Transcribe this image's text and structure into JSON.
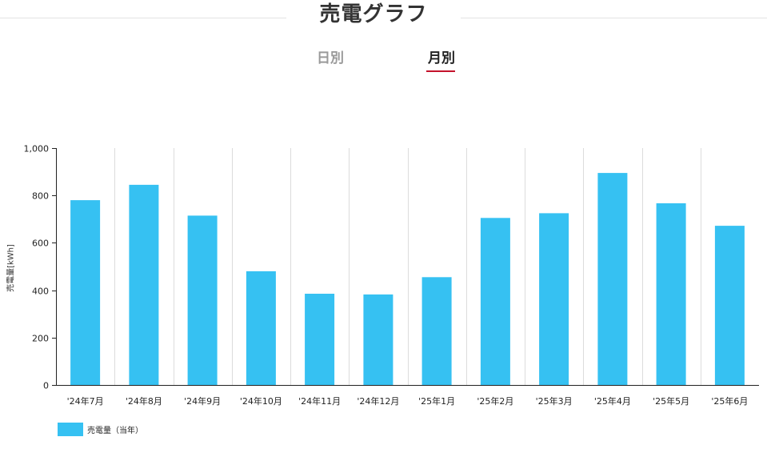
{
  "header": {
    "title": "売電グラフ"
  },
  "tabs": [
    {
      "label": "日別",
      "active": false
    },
    {
      "label": "月別",
      "active": true
    }
  ],
  "colors": {
    "bar": "#36c1f2",
    "accent": "#c4122b",
    "grid": "#dcdcdc",
    "axis": "#222222"
  },
  "legend": [
    {
      "label": "売電量（当年）",
      "color": "#36c1f2"
    }
  ],
  "chart_data": {
    "type": "bar",
    "categories": [
      "'24年7月",
      "'24年8月",
      "'24年9月",
      "'24年10月",
      "'24年11月",
      "'24年12月",
      "'25年1月",
      "'25年2月",
      "'25年3月",
      "'25年4月",
      "'25年5月",
      "'25年6月"
    ],
    "series": [
      {
        "name": "売電量（当年）",
        "values": [
          780,
          845,
          715,
          480,
          385,
          382,
          455,
          705,
          725,
          895,
          767,
          672
        ]
      }
    ],
    "ylabel": "売電量[kWh]",
    "xlabel": "",
    "ylim": [
      0,
      1000
    ],
    "yticks": [
      0,
      200,
      400,
      600,
      800,
      1000
    ],
    "ytick_labels": [
      "0",
      "200",
      "400",
      "600",
      "800",
      "1,000"
    ],
    "grid": "vertical",
    "legend_position": "bottom-left"
  }
}
